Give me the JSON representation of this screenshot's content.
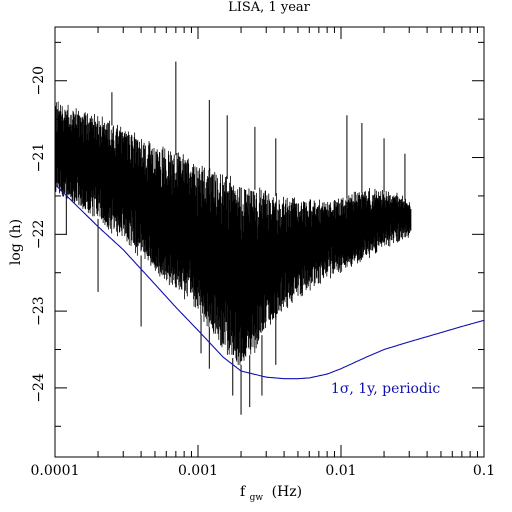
{
  "chart_data": {
    "type": "line",
    "title": "LISA, 1 year",
    "xlabel_main": "f",
    "xlabel_sub": "gw",
    "xlabel_unit": "(Hz)",
    "ylabel": "log (h)",
    "x_scale": "log",
    "xlim": [
      0.0001,
      0.1
    ],
    "ylim": [
      -24.9,
      -19.3
    ],
    "x_ticks": [
      {
        "value": 0.0001,
        "label": "0.0001"
      },
      {
        "value": 0.001,
        "label": "0.001"
      },
      {
        "value": 0.01,
        "label": "0.01"
      },
      {
        "value": 0.1,
        "label": "0.1"
      }
    ],
    "y_ticks": [
      {
        "value": -20,
        "label": "−20"
      },
      {
        "value": -21,
        "label": "−21"
      },
      {
        "value": -22,
        "label": "−22"
      },
      {
        "value": -23,
        "label": "−23"
      },
      {
        "value": -24,
        "label": "−24"
      }
    ],
    "grid": false,
    "series": [
      {
        "kind": "noise-band",
        "color": "#000000",
        "envelope_x": [
          0.0001,
          0.0002,
          0.0003,
          0.0005,
          0.0007,
          0.001,
          0.0013,
          0.0016,
          0.002,
          0.0025,
          0.003,
          0.004,
          0.005,
          0.007,
          0.01,
          0.015,
          0.02,
          0.025,
          0.031
        ],
        "upper": [
          -20.3,
          -20.5,
          -20.65,
          -20.85,
          -20.97,
          -21.1,
          -21.2,
          -21.28,
          -21.33,
          -21.42,
          -21.48,
          -21.52,
          -21.58,
          -21.6,
          -21.55,
          -21.45,
          -21.45,
          -21.5,
          -21.6
        ],
        "lower": [
          -21.4,
          -21.8,
          -22.05,
          -22.45,
          -22.7,
          -23.0,
          -23.3,
          -23.55,
          -23.7,
          -23.5,
          -23.2,
          -22.95,
          -22.8,
          -22.6,
          -22.45,
          -22.3,
          -22.15,
          -22.05,
          -22.0
        ],
        "spikes": [
          {
            "x": 0.0007,
            "y": -19.75
          },
          {
            "x": 0.0012,
            "y": -20.25
          },
          {
            "x": 0.00025,
            "y": -20.15
          },
          {
            "x": 0.0016,
            "y": -20.45
          },
          {
            "x": 0.0025,
            "y": -20.6
          },
          {
            "x": 0.0035,
            "y": -20.75
          },
          {
            "x": 0.011,
            "y": -20.45
          },
          {
            "x": 0.014,
            "y": -20.55
          },
          {
            "x": 0.02,
            "y": -20.75
          },
          {
            "x": 0.028,
            "y": -20.95
          },
          {
            "x": 0.002,
            "y": -24.35
          },
          {
            "x": 0.0023,
            "y": -24.25
          },
          {
            "x": 0.00175,
            "y": -24.1
          },
          {
            "x": 0.0028,
            "y": -24.1
          },
          {
            "x": 0.00105,
            "y": -23.55
          },
          {
            "x": 0.0012,
            "y": -23.75
          },
          {
            "x": 0.0035,
            "y": -23.7
          },
          {
            "x": 0.0002,
            "y": -22.75
          },
          {
            "x": 0.00012,
            "y": -22.0
          },
          {
            "x": 0.0004,
            "y": -23.2
          }
        ]
      },
      {
        "name": "1σ, 1y, periodic",
        "color": "#1010b0",
        "x": [
          0.0001,
          0.0002,
          0.0003,
          0.0005,
          0.0007,
          0.001,
          0.0015,
          0.002,
          0.003,
          0.004,
          0.005,
          0.006,
          0.008,
          0.01,
          0.015,
          0.02,
          0.03,
          0.05,
          0.07,
          0.1
        ],
        "y": [
          -21.35,
          -21.9,
          -22.2,
          -22.65,
          -22.95,
          -23.25,
          -23.6,
          -23.78,
          -23.86,
          -23.88,
          -23.88,
          -23.87,
          -23.82,
          -23.75,
          -23.6,
          -23.5,
          -23.4,
          -23.28,
          -23.2,
          -23.12
        ]
      }
    ],
    "annotations": [
      {
        "text": "1σ, 1y, periodic",
        "x": 0.0085,
        "y": -24.0,
        "color": "#1010b0"
      }
    ]
  }
}
